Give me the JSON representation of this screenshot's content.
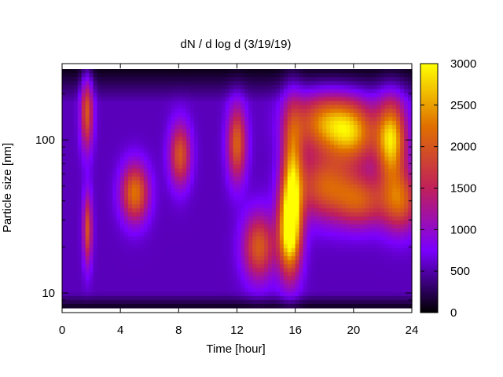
{
  "chart_data": {
    "type": "heatmap",
    "title": "dN / d log d (3/19/19)",
    "xlabel": "Time [hour]",
    "ylabel": "Particle size [nm]",
    "x_range": [
      0,
      24
    ],
    "x_ticks": [
      0,
      4,
      8,
      12,
      16,
      20,
      24
    ],
    "y_scale": "log",
    "y_range": [
      8,
      290
    ],
    "y_ticks": [
      10,
      100
    ],
    "colorbar": {
      "range": [
        0,
        3000
      ],
      "ticks": [
        0,
        500,
        1000,
        1500,
        2000,
        2500,
        3000
      ],
      "colormap": "gnuplot",
      "colors": [
        "#000000",
        "#7a00ff",
        "#c0205a",
        "#e07000",
        "#ffff00"
      ]
    },
    "background_level": 550,
    "edge_level": 60,
    "features": [
      {
        "time": 1.7,
        "size": 150,
        "dt": 0.3,
        "dlog": 0.17,
        "value": 1450
      },
      {
        "time": 1.75,
        "size": 26,
        "dt": 0.22,
        "dlog": 0.16,
        "value": 1400
      },
      {
        "time": 5.0,
        "size": 45,
        "dt": 0.65,
        "dlog": 0.13,
        "value": 1700
      },
      {
        "time": 8.1,
        "size": 80,
        "dt": 0.5,
        "dlog": 0.14,
        "value": 1450
      },
      {
        "time": 12.0,
        "size": 95,
        "dt": 0.45,
        "dlog": 0.17,
        "value": 1550
      },
      {
        "time": 13.5,
        "size": 20,
        "dt": 0.75,
        "dlog": 0.15,
        "value": 1500
      },
      {
        "time": 15.6,
        "size": 25,
        "dt": 0.55,
        "dlog": 0.2,
        "value": 2300
      },
      {
        "time": 15.8,
        "size": 60,
        "dt": 0.5,
        "dlog": 0.3,
        "value": 1700
      },
      {
        "time": 18.0,
        "size": 130,
        "dt": 1.5,
        "dlog": 0.13,
        "value": 1650
      },
      {
        "time": 18.0,
        "size": 50,
        "dt": 1.4,
        "dlog": 0.15,
        "value": 1450
      },
      {
        "time": 20.0,
        "size": 110,
        "dt": 1.2,
        "dlog": 0.14,
        "value": 1600
      },
      {
        "time": 20.5,
        "size": 40,
        "dt": 1.2,
        "dlog": 0.12,
        "value": 1300
      },
      {
        "time": 22.6,
        "size": 100,
        "dt": 0.7,
        "dlog": 0.18,
        "value": 2200
      },
      {
        "time": 23.2,
        "size": 40,
        "dt": 0.9,
        "dlog": 0.14,
        "value": 1500
      }
    ]
  }
}
